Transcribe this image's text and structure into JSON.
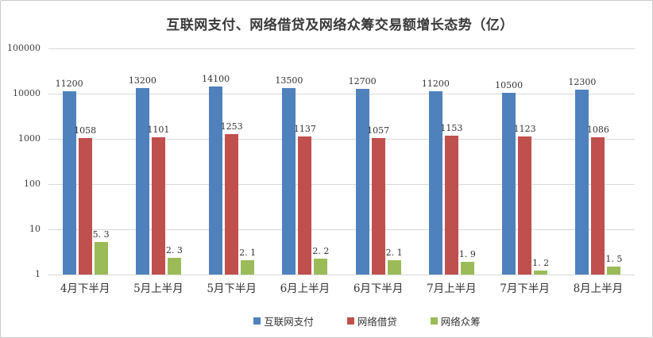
{
  "chart_data": {
    "type": "bar",
    "title": "互联网支付、网络借贷及网络众筹交易额增长态势（亿）",
    "categories": [
      "4月下半月",
      "5月上半月",
      "5月下半月",
      "6月上半月",
      "6月下半月",
      "7月上半月",
      "7月下半月",
      "8月上半月"
    ],
    "series": [
      {
        "name": "互联网支付",
        "color": "#4f81bd",
        "values": [
          11200,
          13200,
          14100,
          13500,
          12700,
          11200,
          10500,
          12300
        ]
      },
      {
        "name": "网络借贷",
        "color": "#c0504d",
        "values": [
          1058,
          1101,
          1253,
          1137,
          1057,
          1153,
          1123,
          1086
        ]
      },
      {
        "name": "网络众筹",
        "color": "#9bbb59",
        "values": [
          5.3,
          2.3,
          2.1,
          2.2,
          2.1,
          1.9,
          1.2,
          1.5
        ]
      }
    ],
    "y_axis": {
      "scale": "log",
      "ticks": [
        1,
        10,
        100,
        1000,
        10000,
        100000
      ]
    },
    "ylim": [
      1,
      100000
    ],
    "xlabel": "",
    "ylabel": "",
    "grid": true,
    "data_labels": true,
    "legend_position": "bottom",
    "colors": {
      "gridline": "#d9d9d9",
      "axis_text": "#404040",
      "label_text": "#333333",
      "title_text": "#3a3a3a",
      "border": "#c9c9c9",
      "background": "#ffffff"
    }
  }
}
